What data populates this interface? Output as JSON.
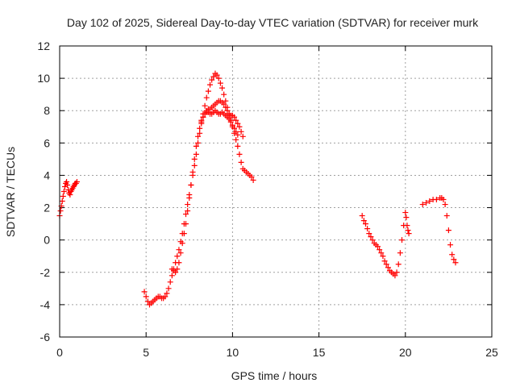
{
  "chart_data": {
    "type": "scatter",
    "title": "Day 102 of 2025, Sidereal Day-to-day VTEC variation (SDTVAR) for receiver murk",
    "xlabel": "GPS time / hours",
    "ylabel": "SDTVAR / TECUs",
    "xlim": [
      0,
      25
    ],
    "ylim": [
      -6,
      12
    ],
    "xticks": [
      "0",
      "5",
      "10",
      "15",
      "20",
      "25"
    ],
    "yticks": [
      "-6",
      "-4",
      "-2",
      "0",
      "2",
      "4",
      "6",
      "8",
      "10",
      "12"
    ],
    "grid": true,
    "marker": "plus",
    "series": [
      {
        "name": "SDTVAR",
        "color": "#ff0000",
        "segments": [
          [
            [
              0.0,
              1.5
            ],
            [
              0.05,
              1.8
            ],
            [
              0.1,
              2.1
            ],
            [
              0.15,
              2.4
            ],
            [
              0.2,
              2.7
            ],
            [
              0.25,
              3.0
            ],
            [
              0.3,
              3.3
            ],
            [
              0.35,
              3.5
            ],
            [
              0.4,
              3.6
            ],
            [
              0.45,
              3.4
            ],
            [
              0.5,
              3.1
            ],
            [
              0.55,
              2.9
            ],
            [
              0.6,
              2.8
            ],
            [
              0.65,
              3.0
            ],
            [
              0.7,
              3.1
            ],
            [
              0.75,
              3.2
            ],
            [
              0.8,
              3.3
            ],
            [
              0.85,
              3.4
            ],
            [
              0.9,
              3.5
            ],
            [
              0.95,
              3.5
            ],
            [
              1.0,
              3.6
            ]
          ],
          [
            [
              4.9,
              -3.2
            ],
            [
              5.0,
              -3.5
            ],
            [
              5.1,
              -3.8
            ],
            [
              5.2,
              -4.0
            ],
            [
              5.3,
              -3.9
            ],
            [
              5.4,
              -3.8
            ],
            [
              5.5,
              -3.7
            ],
            [
              5.6,
              -3.6
            ],
            [
              5.7,
              -3.5
            ],
            [
              5.8,
              -3.5
            ],
            [
              5.9,
              -3.6
            ],
            [
              6.0,
              -3.6
            ],
            [
              6.1,
              -3.5
            ],
            [
              6.2,
              -3.3
            ],
            [
              6.3,
              -3.0
            ],
            [
              6.4,
              -2.6
            ],
            [
              6.5,
              -2.2
            ],
            [
              6.6,
              -1.8
            ],
            [
              6.7,
              -1.4
            ],
            [
              6.8,
              -1.0
            ],
            [
              6.9,
              -0.6
            ],
            [
              7.0,
              -0.1
            ],
            [
              7.1,
              0.4
            ],
            [
              7.2,
              1.0
            ],
            [
              7.3,
              1.6
            ],
            [
              7.4,
              2.2
            ],
            [
              7.5,
              2.8
            ],
            [
              7.6,
              3.4
            ],
            [
              7.7,
              4.0
            ],
            [
              7.8,
              4.6
            ],
            [
              7.9,
              5.3
            ],
            [
              8.0,
              6.0
            ],
            [
              8.1,
              6.6
            ],
            [
              8.2,
              7.2
            ],
            [
              8.3,
              7.8
            ],
            [
              8.4,
              8.3
            ],
            [
              8.5,
              8.8
            ],
            [
              8.6,
              9.2
            ],
            [
              8.7,
              9.6
            ],
            [
              8.8,
              9.9
            ],
            [
              8.9,
              10.1
            ],
            [
              9.0,
              10.3
            ],
            [
              9.1,
              10.2
            ],
            [
              9.2,
              10.0
            ],
            [
              9.3,
              9.7
            ],
            [
              9.4,
              9.4
            ],
            [
              9.5,
              9.0
            ],
            [
              9.6,
              8.6
            ],
            [
              9.7,
              8.2
            ],
            [
              9.8,
              7.8
            ],
            [
              9.9,
              7.4
            ],
            [
              10.0,
              7.0
            ],
            [
              10.1,
              6.6
            ],
            [
              10.2,
              6.2
            ],
            [
              10.3,
              5.8
            ],
            [
              10.4,
              5.3
            ],
            [
              10.5,
              4.8
            ],
            [
              10.6,
              4.4
            ],
            [
              10.7,
              4.3
            ],
            [
              10.8,
              4.2
            ],
            [
              10.9,
              4.1
            ],
            [
              11.0,
              4.0
            ],
            [
              11.1,
              3.9
            ],
            [
              11.2,
              3.7
            ]
          ],
          [
            [
              6.5,
              -1.8
            ],
            [
              6.6,
              -1.9
            ],
            [
              6.7,
              -2.0
            ],
            [
              6.8,
              -1.8
            ],
            [
              6.9,
              -1.4
            ],
            [
              7.0,
              -0.8
            ],
            [
              7.1,
              -0.2
            ],
            [
              7.2,
              0.4
            ],
            [
              7.3,
              1.0
            ],
            [
              7.4,
              1.8
            ],
            [
              7.5,
              2.6
            ],
            [
              7.6,
              3.4
            ],
            [
              7.7,
              4.2
            ],
            [
              7.8,
              5.0
            ],
            [
              7.9,
              5.8
            ],
            [
              8.0,
              6.4
            ],
            [
              8.1,
              6.9
            ],
            [
              8.2,
              7.3
            ],
            [
              8.3,
              7.6
            ],
            [
              8.4,
              7.8
            ],
            [
              8.5,
              7.9
            ],
            [
              8.6,
              7.9
            ],
            [
              8.7,
              7.8
            ],
            [
              8.8,
              7.8
            ],
            [
              8.9,
              7.9
            ],
            [
              9.0,
              8.0
            ],
            [
              9.1,
              7.9
            ],
            [
              9.2,
              7.8
            ],
            [
              9.3,
              7.8
            ],
            [
              9.4,
              7.9
            ],
            [
              9.5,
              7.8
            ],
            [
              9.6,
              7.7
            ],
            [
              9.7,
              7.6
            ],
            [
              9.8,
              7.5
            ],
            [
              9.9,
              7.3
            ],
            [
              10.0,
              7.1
            ],
            [
              10.1,
              6.9
            ],
            [
              10.2,
              6.7
            ],
            [
              10.3,
              6.5
            ]
          ],
          [
            [
              8.2,
              7.4
            ],
            [
              8.3,
              7.6
            ],
            [
              8.4,
              7.8
            ],
            [
              8.5,
              8.0
            ],
            [
              8.6,
              8.1
            ],
            [
              8.7,
              8.1
            ],
            [
              8.8,
              8.2
            ],
            [
              8.9,
              8.3
            ],
            [
              9.0,
              8.4
            ],
            [
              9.1,
              8.5
            ],
            [
              9.2,
              8.6
            ],
            [
              9.3,
              8.6
            ],
            [
              9.4,
              8.5
            ],
            [
              9.5,
              8.4
            ],
            [
              9.6,
              8.2
            ],
            [
              9.7,
              8.0
            ],
            [
              9.8,
              7.8
            ],
            [
              9.9,
              7.7
            ],
            [
              10.0,
              7.7
            ],
            [
              10.1,
              7.6
            ],
            [
              10.2,
              7.4
            ],
            [
              10.3,
              7.2
            ],
            [
              10.4,
              7.0
            ],
            [
              10.5,
              6.7
            ],
            [
              10.6,
              6.4
            ]
          ],
          [
            [
              17.5,
              1.5
            ],
            [
              17.6,
              1.2
            ],
            [
              17.7,
              1.0
            ],
            [
              17.8,
              0.7
            ],
            [
              17.9,
              0.4
            ],
            [
              18.0,
              0.2
            ],
            [
              18.1,
              0.0
            ],
            [
              18.2,
              -0.2
            ],
            [
              18.3,
              -0.3
            ],
            [
              18.4,
              -0.4
            ],
            [
              18.5,
              -0.6
            ],
            [
              18.6,
              -0.8
            ],
            [
              18.7,
              -1.0
            ],
            [
              18.8,
              -1.3
            ],
            [
              18.9,
              -1.5
            ],
            [
              19.0,
              -1.7
            ],
            [
              19.1,
              -1.9
            ],
            [
              19.2,
              -2.0
            ],
            [
              19.3,
              -2.1
            ],
            [
              19.4,
              -2.2
            ],
            [
              19.5,
              -2.0
            ],
            [
              19.6,
              -1.5
            ],
            [
              19.7,
              -0.8
            ],
            [
              19.8,
              0.0
            ],
            [
              19.9,
              0.9
            ],
            [
              20.0,
              1.7
            ],
            [
              20.05,
              1.4
            ],
            [
              20.1,
              0.9
            ],
            [
              20.15,
              0.6
            ],
            [
              20.2,
              0.4
            ]
          ],
          [
            [
              21.0,
              2.2
            ],
            [
              21.2,
              2.3
            ],
            [
              21.4,
              2.4
            ],
            [
              21.6,
              2.5
            ],
            [
              21.8,
              2.5
            ],
            [
              22.0,
              2.6
            ],
            [
              22.1,
              2.6
            ],
            [
              22.2,
              2.5
            ],
            [
              22.3,
              2.2
            ],
            [
              22.4,
              1.5
            ],
            [
              22.5,
              0.6
            ],
            [
              22.6,
              -0.3
            ],
            [
              22.7,
              -0.9
            ],
            [
              22.8,
              -1.2
            ],
            [
              22.9,
              -1.4
            ]
          ]
        ]
      }
    ]
  }
}
